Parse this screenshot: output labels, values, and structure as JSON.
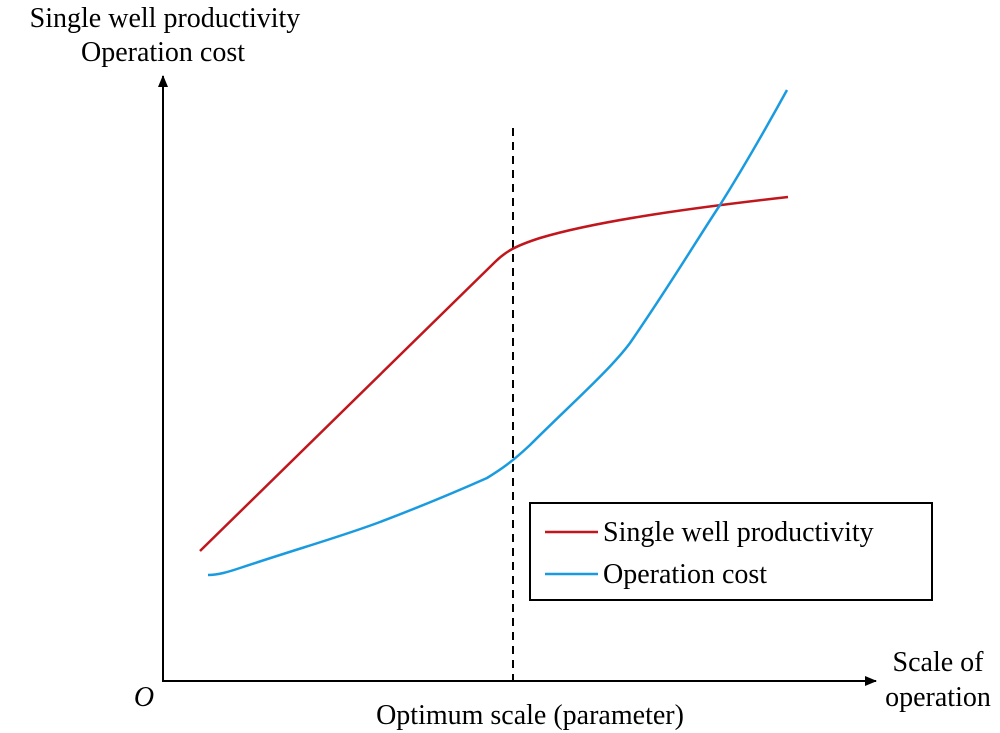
{
  "diagram": {
    "y_axis_label": [
      "Single well productivity",
      "Operation cost"
    ],
    "x_axis_label": [
      "Scale of",
      "operation"
    ],
    "origin": "O",
    "annotation": "Optimum scale (parameter)",
    "legend": [
      "Single well productivity",
      "Operation cost"
    ]
  }
}
